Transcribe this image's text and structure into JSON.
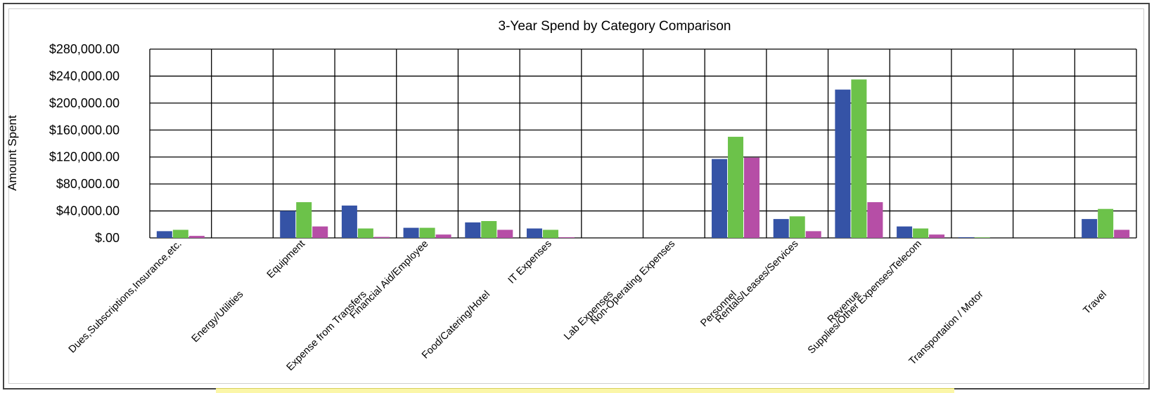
{
  "chart_data": {
    "type": "bar",
    "title": "3-Year Spend by Category Comparison",
    "ylabel": "Amount Spent",
    "xlabel": "",
    "ylim": [
      0,
      280000
    ],
    "y_ticks": [
      0,
      40000,
      80000,
      120000,
      160000,
      200000,
      240000,
      280000
    ],
    "y_tick_labels": [
      "$.00",
      "$40,000.00",
      "$80,000.00",
      "$120,000.00",
      "$160,000.00",
      "$200,000.00",
      "$240,000.00",
      "$280,000.00"
    ],
    "grid": true,
    "categories": [
      "Dues,Subscriptions,Insurance,etc.",
      "Energy/Utilities",
      "Equipment",
      "Expense from Transfers",
      "Financial  Aid/Employee",
      "Food/Catering/Hotel",
      "IT Expenses",
      "Lab Expenses",
      "Non-Operating  Expenses",
      "Personnel",
      "Rentals/Leases/Services",
      "Revenue",
      "Supplies/Other  Expenses/Telecom",
      "Transportation / Motor",
      "",
      "Travel"
    ],
    "series": [
      {
        "color": "#3553a6",
        "values": [
          10000,
          0,
          40000,
          48000,
          15000,
          23000,
          14000,
          0,
          0,
          117000,
          28000,
          220000,
          17000,
          1000,
          0,
          28000
        ]
      },
      {
        "color": "#6cc24a",
        "values": [
          12000,
          0,
          53000,
          14000,
          15000,
          25000,
          12000,
          0,
          0,
          150000,
          32000,
          235000,
          14000,
          800,
          0,
          43000
        ]
      },
      {
        "color": "#b64ea6",
        "values": [
          3000,
          0,
          17000,
          1500,
          5000,
          12000,
          1000,
          0,
          0,
          119000,
          10000,
          53000,
          5000,
          0,
          0,
          12000
        ]
      }
    ]
  }
}
